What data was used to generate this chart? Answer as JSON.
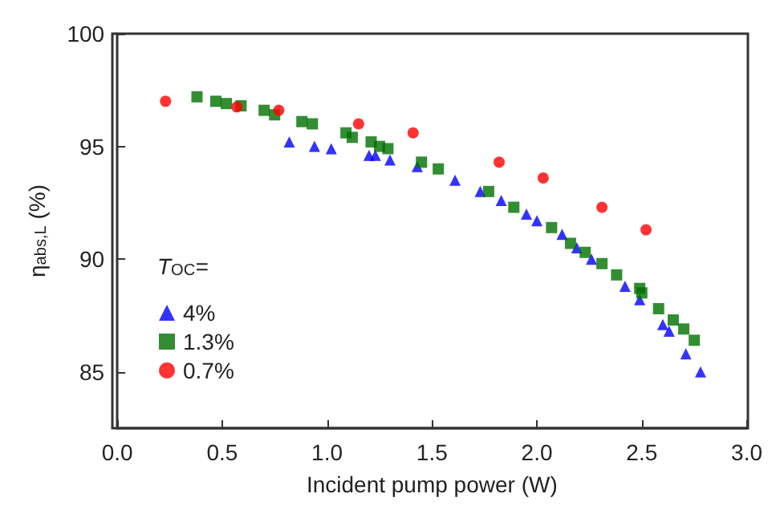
{
  "chart_data": {
    "type": "scatter",
    "xlabel": "Incident pump power (W)",
    "ylabel": "η$_{abs,L}$ (%)",
    "legend_title": "T$_{OC}$=",
    "xlim": [
      0,
      3
    ],
    "xticks": [
      {
        "value": 0,
        "label": "0.0"
      },
      {
        "value": 0.5,
        "label": "0.5"
      },
      {
        "value": 1,
        "label": "1.0"
      },
      {
        "value": 1.5,
        "label": "1.5"
      },
      {
        "value": 2,
        "label": "2.0"
      },
      {
        "value": 2.5,
        "label": "2.5"
      },
      {
        "value": 3,
        "label": "3.0"
      }
    ],
    "ylim": [
      82.5,
      100
    ],
    "yticks": [
      85,
      90,
      95,
      100
    ],
    "grid": false,
    "legend": "bottom left",
    "series": [
      {
        "name": "4%",
        "color": "#0000ff",
        "marker": "triangle",
        "x": [
          0.82,
          0.94,
          1.02,
          1.2,
          1.23,
          1.3,
          1.43,
          1.61,
          1.73,
          1.83,
          1.95,
          2.0,
          2.12,
          2.19,
          2.26,
          2.42,
          2.49,
          2.6,
          2.63,
          2.71,
          2.78
        ],
        "values": [
          95.2,
          95.0,
          94.9,
          94.6,
          94.6,
          94.4,
          94.1,
          93.5,
          93.0,
          92.6,
          92.0,
          91.7,
          91.1,
          90.5,
          90.0,
          88.8,
          88.2,
          87.1,
          86.8,
          85.8,
          85.0
        ]
      },
      {
        "name": "1.3%",
        "color": "#007000",
        "marker": "square",
        "x": [
          0.38,
          0.47,
          0.52,
          0.59,
          0.7,
          0.75,
          0.88,
          0.93,
          1.09,
          1.12,
          1.21,
          1.25,
          1.29,
          1.45,
          1.53,
          1.77,
          1.89,
          2.07,
          2.16,
          2.23,
          2.31,
          2.38,
          2.49,
          2.5,
          2.58,
          2.65,
          2.7,
          2.75
        ],
        "values": [
          97.2,
          97.0,
          96.9,
          96.8,
          96.6,
          96.4,
          96.1,
          96.0,
          95.6,
          95.4,
          95.2,
          95.0,
          94.9,
          94.3,
          94.0,
          93.0,
          92.3,
          91.4,
          90.7,
          90.3,
          89.8,
          89.3,
          88.7,
          88.5,
          87.8,
          87.3,
          86.9,
          86.4
        ]
      },
      {
        "name": "0.7%",
        "color": "#ff0000",
        "marker": "circle",
        "x": [
          0.23,
          0.57,
          0.77,
          1.15,
          1.41,
          1.82,
          2.03,
          2.31,
          2.52
        ],
        "values": [
          97.0,
          96.75,
          96.6,
          96.0,
          95.6,
          94.3,
          93.6,
          92.3,
          91.3
        ]
      }
    ]
  }
}
